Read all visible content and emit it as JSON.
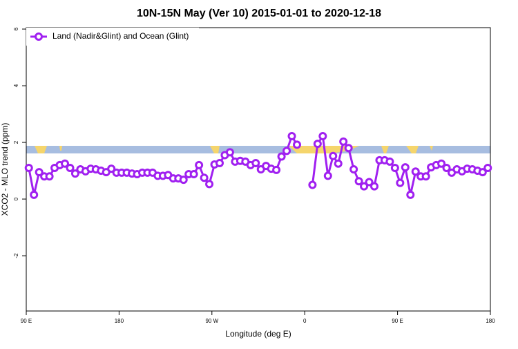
{
  "chart_data": {
    "type": "line",
    "title": "10N-15N May (Ver 10)   2015-01-01 to 2020-12-18",
    "x_label": "Longitude (deg E)",
    "y_label": "XCO2 - MLO trend (ppm)",
    "xlim": [
      90,
      540
    ],
    "xticks": [
      {
        "value": 90,
        "label": "90 E"
      },
      {
        "value": 180,
        "label": "180"
      },
      {
        "value": 270,
        "label": "90 W"
      },
      {
        "value": 360,
        "label": "0"
      },
      {
        "value": 450,
        "label": "90 E"
      },
      {
        "value": 540,
        "label": "180"
      }
    ],
    "ylim": [
      -3.95,
      6.05
    ],
    "yticks": [
      -2,
      0,
      2,
      4,
      6
    ],
    "legend": "top-left",
    "x": [
      92.5,
      97.5,
      102.5,
      107.5,
      112.5,
      117.5,
      122.5,
      127.5,
      132.5,
      137.5,
      142.5,
      147.5,
      152.5,
      157.5,
      162.5,
      167.5,
      172.5,
      177.5,
      182.5,
      187.5,
      192.5,
      197.5,
      202.5,
      207.5,
      212.5,
      217.5,
      222.5,
      227.5,
      232.5,
      237.5,
      242.5,
      247.5,
      252.5,
      257.5,
      262.5,
      267.5,
      272.5,
      277.5,
      282.5,
      287.5,
      292.5,
      297.5,
      302.5,
      307.5,
      312.5,
      317.5,
      322.5,
      327.5,
      332.5,
      337.5,
      342.5,
      347.5,
      352.5,
      357.5,
      362.5,
      367.5,
      372.5,
      377.5,
      382.5,
      387.5,
      392.5,
      397.5,
      402.5,
      407.5,
      412.5,
      417.5,
      422.5,
      427.5,
      432.5,
      437.5,
      442.5,
      447.5,
      452.5,
      457.5,
      462.5,
      467.5,
      472.5,
      477.5,
      482.5,
      487.5,
      492.5,
      497.5,
      502.5,
      507.5,
      512.5,
      517.5,
      522.5,
      527.5,
      532.5,
      537.5
    ],
    "series": [
      {
        "name": "Land (Nadir&Glint) and Ocean (Glint)",
        "color": "#a020f0",
        "values": [
          1.1,
          0.15,
          0.95,
          0.8,
          0.8,
          1.1,
          1.2,
          1.25,
          1.1,
          0.9,
          1.05,
          0.98,
          1.07,
          1.05,
          1.0,
          0.95,
          1.07,
          0.93,
          0.93,
          0.93,
          0.9,
          0.88,
          0.93,
          0.93,
          0.93,
          0.82,
          0.82,
          0.85,
          0.73,
          0.73,
          0.68,
          0.88,
          0.88,
          1.2,
          0.75,
          0.53,
          1.22,
          1.27,
          1.55,
          1.65,
          1.32,
          1.35,
          1.32,
          1.2,
          1.27,
          1.05,
          1.17,
          1.07,
          1.03,
          1.5,
          1.7,
          2.22,
          1.92,
          null,
          null,
          0.5,
          1.95,
          2.22,
          0.82,
          1.52,
          1.25,
          2.03,
          1.8,
          1.05,
          0.63,
          0.45,
          0.6,
          0.45,
          1.37,
          1.37,
          1.32,
          1.1,
          0.57,
          1.12,
          0.15,
          0.97,
          0.8,
          0.8,
          1.12,
          1.2,
          1.25,
          1.1,
          0.93,
          1.05,
          0.98,
          1.07,
          1.05,
          1.0,
          0.95,
          1.1
        ]
      }
    ]
  }
}
